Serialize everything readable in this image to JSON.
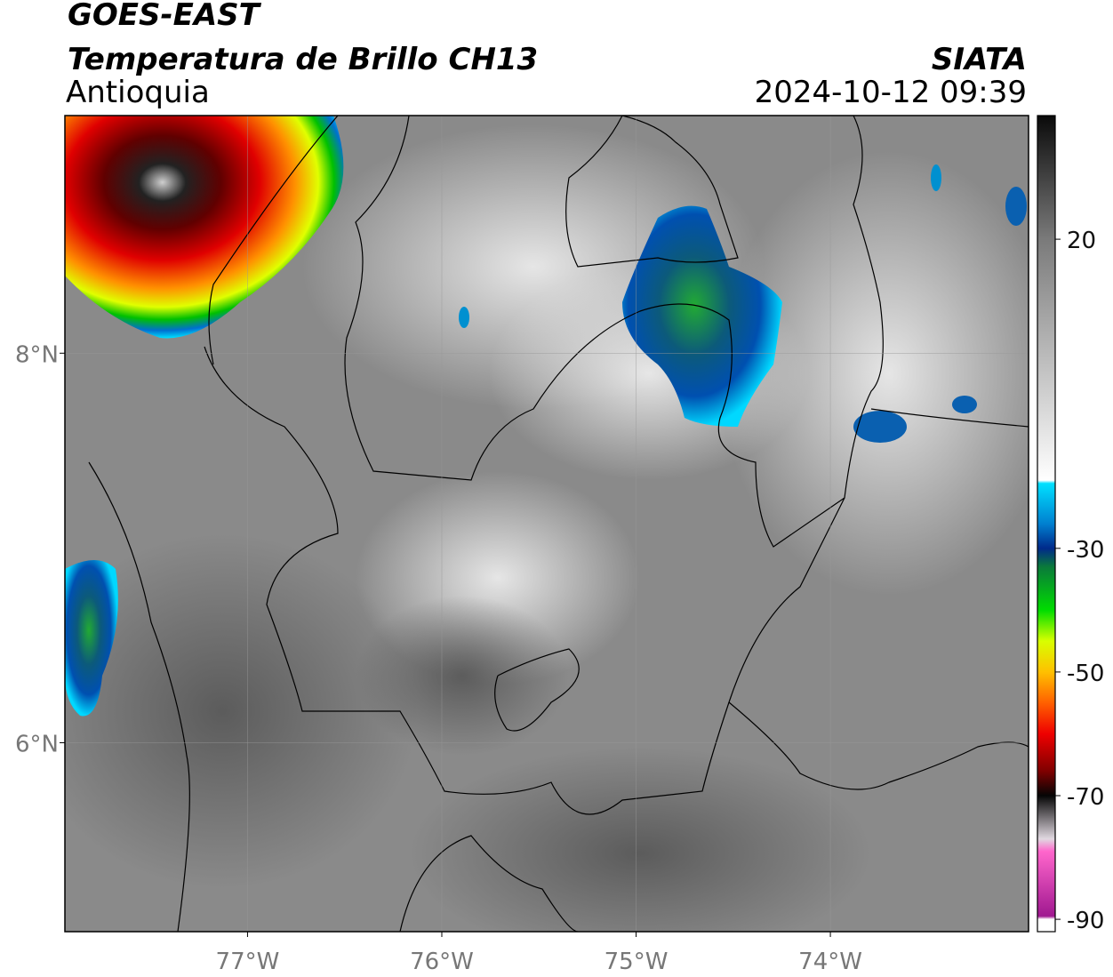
{
  "header": {
    "satellite": "GOES-EAST",
    "product": "Temperatura de Brillo CH13",
    "region": "Antioquia",
    "source": "SIATA",
    "datetime": "2024-10-12 09:39"
  },
  "map": {
    "xlim": [
      -77.94,
      -72.98
    ],
    "ylim": [
      5.03,
      9.22
    ],
    "grid": true,
    "xticks": [
      {
        "value": -77,
        "label": "77°W"
      },
      {
        "value": -76,
        "label": "76°W"
      },
      {
        "value": -75,
        "label": "75°W"
      },
      {
        "value": -74,
        "label": "74°W"
      }
    ],
    "yticks": [
      {
        "value": 8,
        "label": "8°N"
      },
      {
        "value": 6,
        "label": "6°N"
      }
    ]
  },
  "colorbar": {
    "lim": [
      -92,
      40
    ],
    "ticks": [
      20,
      -30,
      -50,
      -70,
      -90
    ],
    "stops": [
      {
        "value": 40,
        "color": "#0a0a0a"
      },
      {
        "value": 20,
        "color": "#7a7a7a"
      },
      {
        "value": -19,
        "color": "#ffffff"
      },
      {
        "value": -19.5,
        "color": "#00e0ff"
      },
      {
        "value": -26,
        "color": "#0080d0"
      },
      {
        "value": -30,
        "color": "#002a8a"
      },
      {
        "value": -33,
        "color": "#0a7a3a"
      },
      {
        "value": -40,
        "color": "#00dd00"
      },
      {
        "value": -45,
        "color": "#d8ff00"
      },
      {
        "value": -50,
        "color": "#ffc000"
      },
      {
        "value": -55,
        "color": "#ff6000"
      },
      {
        "value": -60,
        "color": "#ee0000"
      },
      {
        "value": -66,
        "color": "#800000"
      },
      {
        "value": -70,
        "color": "#050505"
      },
      {
        "value": -77,
        "color": "#e0d8e0"
      },
      {
        "value": -79,
        "color": "#ff66cc"
      },
      {
        "value": -89.5,
        "color": "#a01890"
      },
      {
        "value": -90,
        "color": "#ffffff"
      }
    ]
  }
}
